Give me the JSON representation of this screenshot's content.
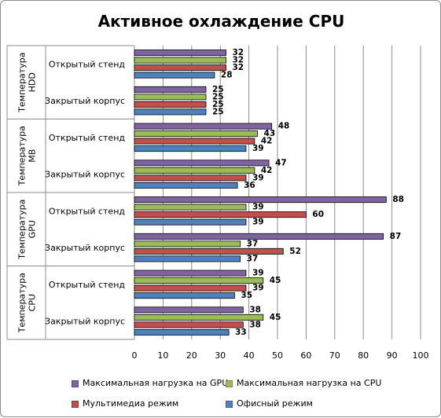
{
  "chart_data": {
    "type": "bar",
    "orientation": "horizontal",
    "title": "Активное охлаждение CPU",
    "xlim": [
      0,
      100
    ],
    "x_ticks": [
      0,
      10,
      20,
      30,
      40,
      50,
      60,
      70,
      80,
      90,
      100
    ],
    "grid": true,
    "legend_position": "bottom",
    "groups": [
      {
        "label": "Температура HDD",
        "categories": [
          "Открытый стенд",
          "Закрытый корпус"
        ]
      },
      {
        "label": "Температура MB",
        "categories": [
          "Открытый стенд",
          "Закрытый корпус"
        ]
      },
      {
        "label": "Температура GPU",
        "categories": [
          "Открытый стенд",
          "Закрытый корпус"
        ]
      },
      {
        "label": "Температура CPU",
        "categories": [
          "Открытый стенд",
          "Закрытый корпус"
        ]
      }
    ],
    "series": [
      {
        "name": "Максимальная нагрузка на GPU",
        "color": "#8064a2",
        "values": [
          32,
          25,
          48,
          47,
          88,
          87,
          39,
          38
        ]
      },
      {
        "name": "Максимальная нагрузка на CPU",
        "color": "#9bbb59",
        "values": [
          32,
          25,
          43,
          42,
          39,
          37,
          45,
          45
        ]
      },
      {
        "name": "Мультимедиа режим",
        "color": "#c0504d",
        "values": [
          32,
          25,
          42,
          39,
          60,
          52,
          39,
          38
        ]
      },
      {
        "name": "Офисный режим",
        "color": "#4f81bd",
        "values": [
          28,
          25,
          39,
          36,
          39,
          37,
          35,
          33
        ]
      }
    ]
  }
}
